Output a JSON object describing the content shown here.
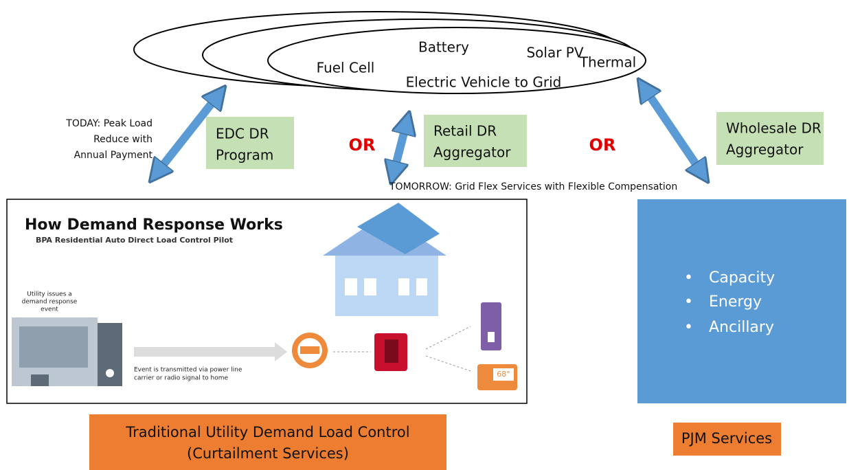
{
  "resources": [
    "Fuel Cell",
    "Battery",
    "Solar PV",
    "Thermal",
    "Electric Vehicle to Grid"
  ],
  "today": [
    "TODAY: Peak Load",
    "Reduce with",
    "Annual Payment"
  ],
  "edc": [
    "EDC DR",
    "Program"
  ],
  "retail": [
    "Retail DR",
    "Aggregator"
  ],
  "wholesale": [
    "Wholesale DR",
    "Aggregator"
  ],
  "or": [
    "OR",
    "OR"
  ],
  "tomorrow": "TOMORROW: Grid Flex Services with Flexible Compensation",
  "infographic": {
    "title": "How Demand Response Works",
    "subtitle": "BPA Residential Auto Direct Load Control Pilot",
    "utility": [
      "Utility issues a",
      "demand response",
      "event"
    ],
    "event": [
      "Event is transmitted via power line",
      "carrier or radio signal to home"
    ],
    "temperature": "68°"
  },
  "pjm_services": [
    "Capacity",
    "Energy",
    "Ancillary"
  ],
  "traditional": [
    "Traditional Utility Demand Load Control",
    "(Curtailment Services)"
  ],
  "pjm_label": "PJM Services"
}
